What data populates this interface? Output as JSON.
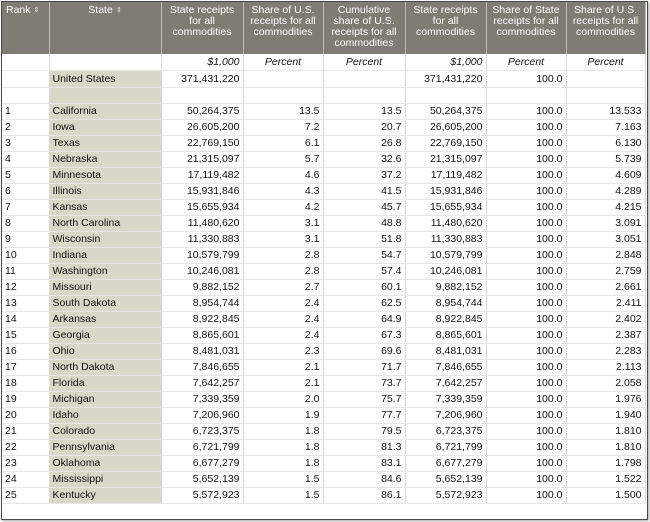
{
  "headers": [
    {
      "label": "Rank",
      "sortable": true
    },
    {
      "label": "State",
      "sortable": true
    },
    {
      "label": "State receipts for all commodities",
      "sortable": false
    },
    {
      "label": "Share of U.S. receipts for all commodities",
      "sortable": false
    },
    {
      "label": "Cumulative share of U.S. receipts for all commodities",
      "sortable": false
    },
    {
      "label": "State receipts for all commodities",
      "sortable": false
    },
    {
      "label": "Share of State receipts for all commodities",
      "sortable": false
    },
    {
      "label": "Share of U.S. receipts for all commodities",
      "sortable": false
    }
  ],
  "sort_glyph": "⇕",
  "units": [
    "",
    "",
    "$1,000",
    "Percent",
    "Percent",
    "$1,000",
    "Percent",
    "Percent"
  ],
  "us_row": [
    "",
    "United States",
    "371,431,220",
    "",
    "",
    "371,431,220",
    "100.0",
    ""
  ],
  "rows": [
    [
      "1",
      "California",
      "50,264,375",
      "13.5",
      "13.5",
      "50,264,375",
      "100.0",
      "13.533"
    ],
    [
      "2",
      "Iowa",
      "26,605,200",
      "7.2",
      "20.7",
      "26,605,200",
      "100.0",
      "7.163"
    ],
    [
      "3",
      "Texas",
      "22,769,150",
      "6.1",
      "26.8",
      "22,769,150",
      "100.0",
      "6.130"
    ],
    [
      "4",
      "Nebraska",
      "21,315,097",
      "5.7",
      "32.6",
      "21,315,097",
      "100.0",
      "5.739"
    ],
    [
      "5",
      "Minnesota",
      "17,119,482",
      "4.6",
      "37.2",
      "17,119,482",
      "100.0",
      "4.609"
    ],
    [
      "6",
      "Illinois",
      "15,931,846",
      "4.3",
      "41.5",
      "15,931,846",
      "100.0",
      "4.289"
    ],
    [
      "7",
      "Kansas",
      "15,655,934",
      "4.2",
      "45.7",
      "15,655,934",
      "100.0",
      "4.215"
    ],
    [
      "8",
      "North Carolina",
      "11,480,620",
      "3.1",
      "48.8",
      "11,480,620",
      "100.0",
      "3.091"
    ],
    [
      "9",
      "Wisconsin",
      "11,330,883",
      "3.1",
      "51.8",
      "11,330,883",
      "100.0",
      "3.051"
    ],
    [
      "10",
      "Indiana",
      "10,579,799",
      "2.8",
      "54.7",
      "10,579,799",
      "100.0",
      "2.848"
    ],
    [
      "11",
      "Washington",
      "10,246,081",
      "2.8",
      "57.4",
      "10,246,081",
      "100.0",
      "2.759"
    ],
    [
      "12",
      "Missouri",
      "9,882,152",
      "2.7",
      "60.1",
      "9,882,152",
      "100.0",
      "2.661"
    ],
    [
      "13",
      "South Dakota",
      "8,954,744",
      "2.4",
      "62.5",
      "8,954,744",
      "100.0",
      "2.411"
    ],
    [
      "14",
      "Arkansas",
      "8,922,845",
      "2.4",
      "64.9",
      "8,922,845",
      "100.0",
      "2.402"
    ],
    [
      "15",
      "Georgia",
      "8,865,601",
      "2.4",
      "67.3",
      "8,865,601",
      "100.0",
      "2.387"
    ],
    [
      "16",
      "Ohio",
      "8,481,031",
      "2.3",
      "69.6",
      "8,481,031",
      "100.0",
      "2.283"
    ],
    [
      "17",
      "North Dakota",
      "7,846,655",
      "2.1",
      "71.7",
      "7,846,655",
      "100.0",
      "2.113"
    ],
    [
      "18",
      "Florida",
      "7,642,257",
      "2.1",
      "73.7",
      "7,642,257",
      "100.0",
      "2.058"
    ],
    [
      "19",
      "Michigan",
      "7,339,359",
      "2.0",
      "75.7",
      "7,339,359",
      "100.0",
      "1.976"
    ],
    [
      "20",
      "Idaho",
      "7,206,960",
      "1.9",
      "77.7",
      "7,206,960",
      "100.0",
      "1.940"
    ],
    [
      "21",
      "Colorado",
      "6,723,375",
      "1.8",
      "79.5",
      "6,723,375",
      "100.0",
      "1.810"
    ],
    [
      "22",
      "Pennsylvania",
      "6,721,799",
      "1.8",
      "81.3",
      "6,721,799",
      "100.0",
      "1.810"
    ],
    [
      "23",
      "Oklahoma",
      "6,677,279",
      "1.8",
      "83.1",
      "6,677,279",
      "100.0",
      "1.798"
    ],
    [
      "24",
      "Mississippi",
      "5,652,139",
      "1.5",
      "84.6",
      "5,652,139",
      "100.0",
      "1.522"
    ],
    [
      "25",
      "Kentucky",
      "5,572,923",
      "1.5",
      "86.1",
      "5,572,923",
      "100.0",
      "1.500"
    ]
  ]
}
